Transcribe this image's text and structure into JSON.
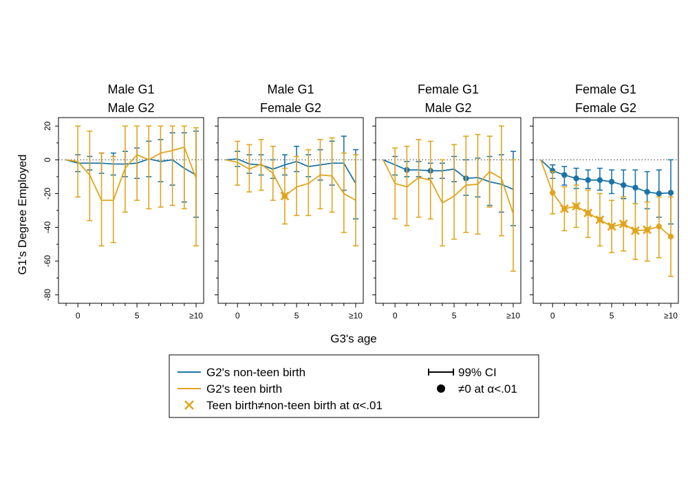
{
  "chart_data": {
    "type": "line",
    "ylabel": "G1's Degree Employed",
    "xlabel": "G3's age",
    "x": [
      -1,
      0,
      1,
      2,
      3,
      4,
      5,
      6,
      7,
      8,
      9,
      10
    ],
    "xtick_values": [
      0,
      5,
      10
    ],
    "xtick_labels": [
      "0",
      "5",
      "≥10"
    ],
    "xlim": [
      -1,
      10
    ],
    "ylim": [
      -85,
      25
    ],
    "ytick_values": [
      20,
      0,
      -20,
      -40,
      -60,
      -80
    ],
    "ytick_labels": [
      "20",
      "0",
      "-20",
      "-40",
      "-60",
      "-80"
    ],
    "colors": {
      "non_teen": "#1a73a8",
      "teen": "#e1a41c"
    },
    "legend": {
      "non_teen": "G2's non-teen birth",
      "teen": "G2's teen birth",
      "diff": "Teen birth≠non-teen birth at α<.01",
      "ci": "99% CI",
      "sig": "≠0 at α<.01"
    },
    "panels": [
      {
        "title_line1": "Male G1",
        "title_line2": "Male G2",
        "non_teen": {
          "values": [
            0,
            -2,
            -2,
            -2,
            -2.5,
            -2.5,
            -2,
            0.5,
            -1,
            0,
            -5,
            -9
          ],
          "lower": [
            null,
            -7,
            -6,
            -8,
            -9,
            -10,
            -11,
            -10,
            -13,
            -15,
            -25,
            -34
          ],
          "upper": [
            null,
            3,
            2,
            4,
            4,
            5,
            7,
            11,
            12,
            16,
            16,
            17
          ],
          "sig": [
            false,
            false,
            false,
            false,
            false,
            false,
            false,
            false,
            false,
            false,
            false,
            false
          ]
        },
        "teen": {
          "values": [
            0,
            -1,
            -9,
            -24,
            -24,
            -5,
            3,
            0,
            4,
            5.5,
            7.5,
            -11
          ],
          "lower": [
            null,
            -22,
            -36,
            -51,
            -49,
            -31,
            -24,
            -29,
            -28,
            -27,
            -29,
            -51
          ],
          "upper": [
            null,
            20,
            17,
            4,
            2,
            20,
            20,
            20,
            20,
            20,
            20,
            19
          ],
          "sig": [
            false,
            false,
            false,
            false,
            false,
            false,
            false,
            false,
            false,
            false,
            false,
            false
          ]
        },
        "diff": [
          false,
          false,
          false,
          false,
          false,
          false,
          false,
          false,
          false,
          false,
          false,
          false
        ]
      },
      {
        "title_line1": "Male G1",
        "title_line2": "Female G2",
        "non_teen": {
          "values": [
            0,
            0.5,
            -2.5,
            -3,
            -5.5,
            -3,
            -1,
            -4,
            -3,
            -2,
            -2,
            -14
          ],
          "lower": [
            null,
            -4,
            -8,
            -9,
            -11,
            -9,
            -7,
            -10,
            -12,
            -15,
            -18,
            -35
          ],
          "upper": [
            null,
            5,
            3,
            3,
            0,
            3,
            8,
            3,
            6,
            11,
            14,
            6
          ],
          "sig": [
            false,
            false,
            false,
            false,
            false,
            false,
            false,
            false,
            false,
            false,
            false,
            false
          ]
        },
        "teen": {
          "values": [
            0,
            -1.5,
            -5.5,
            -2.5,
            -8,
            -21.5,
            -16,
            -14,
            -9,
            -9.5,
            -20,
            -24
          ],
          "lower": [
            null,
            -15,
            -19,
            -18,
            -24,
            -38,
            -33,
            -33,
            -29,
            -31,
            -43,
            -51
          ],
          "upper": [
            null,
            11,
            9,
            12,
            8,
            -5,
            2,
            6,
            12,
            13,
            4,
            3
          ],
          "sig": [
            false,
            false,
            false,
            false,
            false,
            true,
            false,
            false,
            false,
            false,
            false,
            false
          ]
        },
        "diff": [
          false,
          false,
          false,
          false,
          false,
          true,
          false,
          false,
          false,
          false,
          false,
          false
        ]
      },
      {
        "title_line1": "Female G1",
        "title_line2": "Male G2",
        "non_teen": {
          "values": [
            0,
            -3,
            -6,
            -6,
            -6.5,
            -6.5,
            -5.5,
            -11,
            -10.5,
            -13,
            -14.5,
            -17.5
          ],
          "lower": [
            null,
            -9,
            -10,
            -10,
            -11,
            -11,
            -13,
            -21,
            -22,
            -27,
            -31,
            -39
          ],
          "upper": [
            null,
            2,
            -1,
            -1,
            -2,
            -2,
            2,
            0,
            1,
            2,
            3,
            5
          ],
          "sig": [
            false,
            false,
            true,
            false,
            true,
            false,
            false,
            true,
            false,
            false,
            false,
            false
          ]
        },
        "teen": {
          "values": [
            0,
            -14,
            -16,
            -10.5,
            -12,
            -25.5,
            -21.5,
            -15,
            -14.5,
            -7,
            -11,
            -32
          ],
          "lower": [
            null,
            -35,
            -39,
            -34,
            -35,
            -51,
            -47,
            -43,
            -44,
            -28,
            -45,
            -66
          ],
          "upper": [
            null,
            7,
            8,
            12,
            11,
            0,
            9,
            14,
            15,
            14,
            20,
            0
          ],
          "sig": [
            false,
            false,
            false,
            false,
            false,
            false,
            false,
            false,
            false,
            false,
            false,
            false
          ]
        },
        "diff": [
          false,
          false,
          false,
          false,
          false,
          false,
          false,
          false,
          false,
          false,
          false,
          false
        ]
      },
      {
        "title_line1": "Female G1",
        "title_line2": "Female G2",
        "non_teen": {
          "values": [
            0,
            -6.5,
            -9,
            -11,
            -12,
            -12,
            -13,
            -15,
            -16.5,
            -19,
            -20,
            -19.5
          ],
          "lower": [
            null,
            -11,
            -15,
            -17,
            -17,
            -18,
            -20,
            -23,
            -26,
            -29,
            -34,
            -38
          ],
          "upper": [
            null,
            -3,
            -4,
            -5,
            -6,
            -5,
            -6,
            -6,
            -6,
            -7,
            -6,
            0
          ],
          "sig": [
            false,
            true,
            true,
            true,
            true,
            true,
            true,
            true,
            true,
            true,
            true,
            true
          ]
        },
        "teen": {
          "values": [
            0,
            -19.5,
            -29,
            -27.5,
            -31.5,
            -35.5,
            -39.5,
            -38,
            -42,
            -41.5,
            -39.5,
            -45.5
          ],
          "lower": [
            null,
            -32,
            -42,
            -40,
            -46,
            -51,
            -55,
            -54,
            -59,
            -60,
            -58,
            -69
          ],
          "upper": [
            null,
            -7,
            -16,
            -15,
            -18,
            -20,
            -24,
            -22,
            -26,
            -25,
            -22,
            -22
          ],
          "sig": [
            false,
            true,
            true,
            true,
            true,
            true,
            true,
            true,
            true,
            true,
            true,
            true
          ]
        },
        "diff": [
          false,
          false,
          true,
          true,
          true,
          true,
          true,
          true,
          true,
          true,
          false,
          false
        ]
      }
    ]
  }
}
